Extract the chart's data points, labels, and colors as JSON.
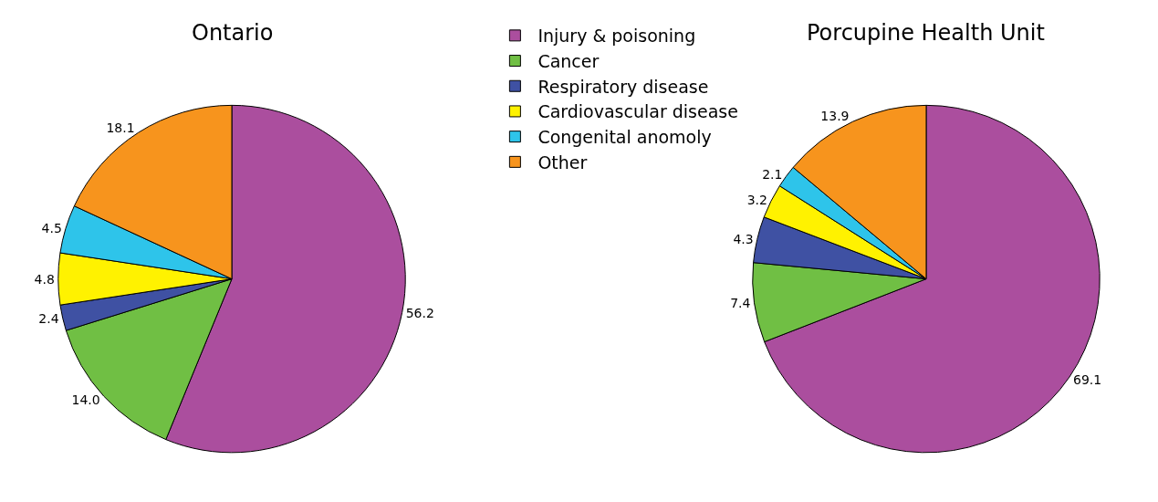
{
  "chart_data": [
    {
      "type": "pie",
      "title": "Ontario",
      "categories": [
        "Injury & poisoning",
        "Cancer",
        "Respiratory disease",
        "Cardiovascular disease",
        "Congenital anomoly",
        "Other"
      ],
      "values": [
        56.2,
        14.0,
        2.4,
        4.8,
        4.5,
        18.1
      ],
      "value_labels": [
        "56.2",
        "14.0",
        "2.4",
        "4.8",
        "4.5",
        "18.1"
      ],
      "colors": [
        "#ab4e9e",
        "#70bf44",
        "#3f51a3",
        "#fff200",
        "#2ec4ea",
        "#f7941d"
      ],
      "legend": "right"
    },
    {
      "type": "pie",
      "title": "Porcupine Health Unit",
      "categories": [
        null,
        null,
        null,
        null,
        null,
        null
      ],
      "values": [
        69.1,
        7.4,
        4.3,
        3.2,
        2.1,
        13.9
      ],
      "value_labels": [
        "69.1",
        "7.4",
        "4.3",
        "3.2",
        "2.1",
        "13.9"
      ],
      "colors": [
        "#ab4e9e",
        "#70bf44",
        "#3f51a3",
        "#fff200",
        "#2ec4ea",
        "#f7941d"
      ]
    }
  ]
}
